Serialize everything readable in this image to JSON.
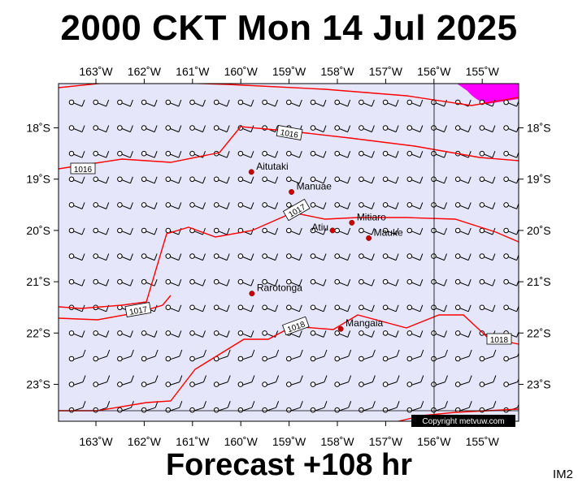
{
  "title": "2000 CKT Mon 14 Jul 2025",
  "footer": "Forecast +108 hr",
  "code": "IM2",
  "copyright": "Copyright metvuw.com",
  "colors": {
    "ocean": "#e6e6fa",
    "isobar": "#ff0000",
    "rain": "#ff00ff",
    "island": "#cc0000"
  },
  "lon_ticks": [
    "163˚W",
    "162˚W",
    "161˚W",
    "160˚W",
    "159˚W",
    "158˚W",
    "157˚W",
    "156˚W",
    "155˚W"
  ],
  "lat_ticks": [
    "18˚S",
    "19˚S",
    "20˚S",
    "21˚S",
    "22˚S",
    "23˚S"
  ],
  "isobar_labels": [
    "1016",
    "1016",
    "1017",
    "1017",
    "1018",
    "1018"
  ],
  "islands": [
    {
      "name": "Aitutaki",
      "lon": -159.78,
      "lat": -18.86
    },
    {
      "name": "Manuae",
      "lon": -158.95,
      "lat": -19.25
    },
    {
      "name": "Mitiaro",
      "lon": -157.7,
      "lat": -19.85
    },
    {
      "name": "Atiu",
      "lon": -158.1,
      "lat": -20.0
    },
    {
      "name": "Mauke",
      "lon": -157.35,
      "lat": -20.15
    },
    {
      "name": "Rarotonga",
      "lon": -159.77,
      "lat": -21.23
    },
    {
      "name": "Mangaia",
      "lon": -157.93,
      "lat": -21.92
    }
  ]
}
